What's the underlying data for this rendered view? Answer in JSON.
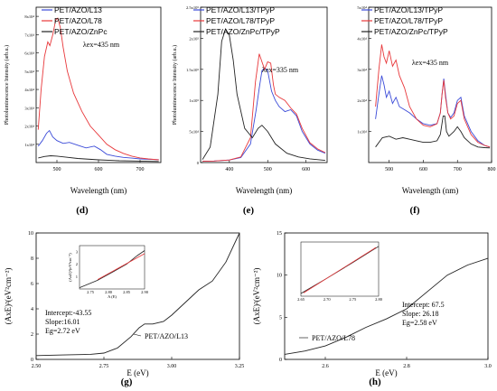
{
  "colors": {
    "blue": "#3b4bd8",
    "red": "#e8383b",
    "black": "#222222"
  },
  "chart_data": [
    {
      "type": "line",
      "panel": "(d)",
      "xlabel": "Wavelength (nm)",
      "ylabel": "Photoluminescence Intensity (arb.u.)",
      "xlim": [
        450,
        750
      ],
      "xticks": [
        500,
        600,
        700
      ],
      "ylim": [
        0,
        85000
      ],
      "ytick_labels": [
        "1x10⁴",
        "2x10⁴",
        "3x10⁴",
        "4x10⁴",
        "5x10⁴",
        "6x10⁴",
        "7x10⁴",
        "8x10⁴"
      ],
      "annotation": "λex=435 nm",
      "series": [
        {
          "name": "PET/AZO/L13",
          "color": "blue",
          "x": [
            455,
            465,
            475,
            482,
            490,
            500,
            515,
            530,
            550,
            570,
            590,
            605,
            620,
            640,
            660,
            680,
            700,
            720,
            745
          ],
          "y": [
            9000,
            12000,
            16000,
            17500,
            14000,
            12000,
            10500,
            11000,
            9500,
            8000,
            9000,
            7000,
            4500,
            3500,
            2800,
            2400,
            2000,
            1800,
            1600
          ]
        },
        {
          "name": "PET/AZO/L78",
          "color": "red",
          "x": [
            455,
            462,
            470,
            478,
            483,
            490,
            497,
            502,
            508,
            515,
            525,
            540,
            560,
            580,
            600,
            620,
            640,
            660,
            680,
            700,
            720,
            745
          ],
          "y": [
            18000,
            40000,
            58000,
            66000,
            64000,
            70000,
            78000,
            79000,
            74000,
            63000,
            50000,
            38000,
            28000,
            20000,
            15000,
            10000,
            7000,
            5000,
            3500,
            2500,
            2000,
            1500
          ]
        },
        {
          "name": "PET/AZO/ZnPc",
          "color": "black",
          "x": [
            455,
            470,
            485,
            500,
            520,
            550,
            600,
            650,
            700,
            745
          ],
          "y": [
            2500,
            3300,
            3700,
            3500,
            3000,
            2200,
            1500,
            1000,
            800,
            600
          ]
        }
      ]
    },
    {
      "type": "line",
      "panel": "(e)",
      "xlabel": "Wavelength (nm)",
      "ylabel": "Photoluminescence Intensity (arb.u.)",
      "xlim": [
        325,
        655
      ],
      "xticks": [
        400,
        500,
        600
      ],
      "ylim": [
        0,
        250000
      ],
      "ytick_labels": [
        "0",
        "5x10⁴",
        "1x10⁵",
        "1.5x10⁵",
        "2x10⁵",
        "2.5x10⁵"
      ],
      "annotation": "λex=335 nm",
      "series": [
        {
          "name": "PET/AZO/L13/TPyP",
          "color": "blue",
          "x": [
            330,
            360,
            400,
            430,
            455,
            470,
            478,
            485,
            492,
            500,
            510,
            520,
            530,
            545,
            560,
            575,
            590,
            610,
            630,
            650
          ],
          "y": [
            2000,
            2500,
            4000,
            8000,
            30000,
            85000,
            120000,
            148000,
            152000,
            148000,
            115000,
            100000,
            90000,
            82000,
            85000,
            75000,
            50000,
            30000,
            20000,
            15000
          ]
        },
        {
          "name": "PET/AZO/L78/TPyP",
          "color": "red",
          "x": [
            330,
            360,
            400,
            430,
            455,
            468,
            478,
            485,
            492,
            500,
            508,
            515,
            520,
            530,
            545,
            560,
            575,
            590,
            610,
            630,
            650
          ],
          "y": [
            2000,
            2500,
            4000,
            9000,
            40000,
            130000,
            175000,
            162000,
            150000,
            162000,
            160000,
            125000,
            110000,
            105000,
            100000,
            88000,
            78000,
            55000,
            32000,
            22000,
            16000
          ]
        },
        {
          "name": "PET/AZO/ZnPc/TPyP",
          "color": "black",
          "x": [
            330,
            350,
            370,
            380,
            390,
            400,
            410,
            420,
            440,
            460,
            475,
            485,
            500,
            520,
            550,
            580,
            610,
            640,
            650
          ],
          "y": [
            5000,
            25000,
            110000,
            195000,
            215000,
            205000,
            165000,
            110000,
            55000,
            40000,
            55000,
            60000,
            50000,
            30000,
            15000,
            9000,
            6000,
            4000,
            3500
          ]
        }
      ]
    },
    {
      "type": "line",
      "panel": "(f)",
      "xlabel": "Wavelength (nm)",
      "ylabel": "",
      "xlim": [
        440,
        800
      ],
      "xticks": [
        500,
        600,
        700,
        800
      ],
      "ylim": [
        0,
        50000
      ],
      "ytick_labels": [
        "1x10⁴",
        "2x10⁴",
        "3x10⁴",
        "4x10⁴",
        "5x10⁴"
      ],
      "annotation": "λex=435 nm",
      "series": [
        {
          "name": "PET/AZO/L13/TPyP",
          "color": "blue",
          "x": [
            460,
            470,
            478,
            485,
            492,
            500,
            510,
            520,
            530,
            545,
            560,
            580,
            600,
            620,
            640,
            650,
            655,
            660,
            665,
            672,
            680,
            690,
            700,
            710,
            720,
            740,
            760,
            780,
            795
          ],
          "y": [
            14000,
            22000,
            28000,
            25000,
            21000,
            23000,
            19000,
            21000,
            18000,
            17000,
            16000,
            14000,
            12500,
            12000,
            12500,
            16000,
            22000,
            27000,
            22000,
            16000,
            14500,
            16000,
            20000,
            21000,
            15000,
            10000,
            7000,
            5500,
            5000
          ]
        },
        {
          "name": "PET/AZO/L78/TPyP",
          "color": "red",
          "x": [
            460,
            470,
            478,
            485,
            492,
            500,
            510,
            520,
            530,
            545,
            560,
            580,
            600,
            620,
            640,
            650,
            655,
            660,
            665,
            672,
            680,
            690,
            700,
            710,
            720,
            740,
            760,
            780,
            795
          ],
          "y": [
            18000,
            30000,
            38000,
            34000,
            32000,
            36000,
            31000,
            33000,
            28000,
            24000,
            18000,
            14000,
            12000,
            11500,
            12500,
            16000,
            22000,
            26500,
            21000,
            16000,
            14000,
            15000,
            19000,
            20000,
            14000,
            9000,
            6500,
            5500,
            5000
          ]
        },
        {
          "name": "PET/AZO/ZnPc/TPyP",
          "color": "black",
          "x": [
            460,
            480,
            500,
            520,
            540,
            560,
            580,
            600,
            620,
            640,
            650,
            658,
            663,
            668,
            675,
            690,
            700,
            710,
            720,
            740,
            760,
            780,
            795
          ],
          "y": [
            5000,
            8000,
            8500,
            7500,
            8000,
            7500,
            7000,
            6500,
            6500,
            7000,
            9000,
            15000,
            15000,
            10000,
            8500,
            10000,
            11500,
            10000,
            8000,
            6000,
            5000,
            4800,
            4700
          ]
        }
      ]
    },
    {
      "type": "line",
      "panel": "(g)",
      "xlabel": "E (eV)",
      "ylabel": "(AxE)²(eV²cm⁻²)",
      "xlim": [
        2.5,
        3.25
      ],
      "xticks": [
        2.5,
        2.75,
        3.0,
        3.25
      ],
      "ylim": [
        0,
        10
      ],
      "yticks": [
        0,
        2,
        4,
        6,
        8,
        10
      ],
      "annotation_lines": [
        "Intercept:-43.55",
        "Slope:16.01",
        "Eg=2.72 eV"
      ],
      "series": [
        {
          "name": "PET/AZO/L13",
          "color": "black",
          "x": [
            2.5,
            2.6,
            2.7,
            2.75,
            2.8,
            2.85,
            2.88,
            2.9,
            2.93,
            2.97,
            3.0,
            3.05,
            3.1,
            3.15,
            3.2,
            3.25
          ],
          "y": [
            0.3,
            0.35,
            0.4,
            0.5,
            0.9,
            1.8,
            2.5,
            2.8,
            2.8,
            3.0,
            3.5,
            4.5,
            5.5,
            6.2,
            7.7,
            10
          ]
        }
      ],
      "inset": {
        "xlabel": "A (E)",
        "ylabel": "(AxE)²(eV²cm⁻²)",
        "xlim": [
          2.72,
          2.9
        ],
        "xticks": [
          2.75,
          2.8,
          2.85,
          2.9
        ],
        "ylim": [
          0,
          3.5
        ],
        "yticks": [
          1,
          2,
          3
        ],
        "series": [
          {
            "name": "",
            "color": "black",
            "x": [
              2.72,
              2.77,
              2.82,
              2.85,
              2.88,
              2.9
            ],
            "y": [
              0.1,
              0.7,
              1.5,
              2.0,
              2.7,
              3.1
            ]
          },
          {
            "name": "",
            "color": "red",
            "x": [
              2.77,
              2.9
            ],
            "y": [
              0.76,
              2.85
            ]
          }
        ]
      }
    },
    {
      "type": "line",
      "panel": "(h)",
      "xlabel": "E (eV)",
      "ylabel": "(AxE)²(eV²cm⁻²)",
      "xlim": [
        2.5,
        3.0
      ],
      "xticks": [
        2.6,
        2.8,
        3.0
      ],
      "ylim": [
        0,
        15
      ],
      "yticks": [
        0,
        5,
        10,
        15
      ],
      "annotation_lines": [
        "Intercept: 67.5",
        "Slope: 26.18",
        "Eg=2.58 eV"
      ],
      "series": [
        {
          "name": "PET/AZO/L78",
          "color": "black",
          "x": [
            2.5,
            2.55,
            2.6,
            2.65,
            2.7,
            2.75,
            2.8,
            2.85,
            2.9,
            2.95,
            3.0
          ],
          "y": [
            0.6,
            1.0,
            1.6,
            2.6,
            3.8,
            4.8,
            6.0,
            8.0,
            10.0,
            11.2,
            12.0
          ]
        }
      ],
      "inset": {
        "xlabel": "",
        "ylabel": "",
        "xlim": [
          2.65,
          2.8
        ],
        "xticks": [
          2.65,
          2.7,
          2.75,
          2.8
        ],
        "ylim": [
          0,
          1
        ],
        "yticks": [],
        "series": [
          {
            "name": "",
            "color": "black",
            "x": [
              2.65,
              2.7,
              2.75,
              2.8
            ],
            "y": [
              0.05,
              0.33,
              0.62,
              0.92
            ]
          },
          {
            "name": "",
            "color": "red",
            "x": [
              2.655,
              2.795
            ],
            "y": [
              0.06,
              0.9
            ]
          }
        ]
      }
    }
  ]
}
